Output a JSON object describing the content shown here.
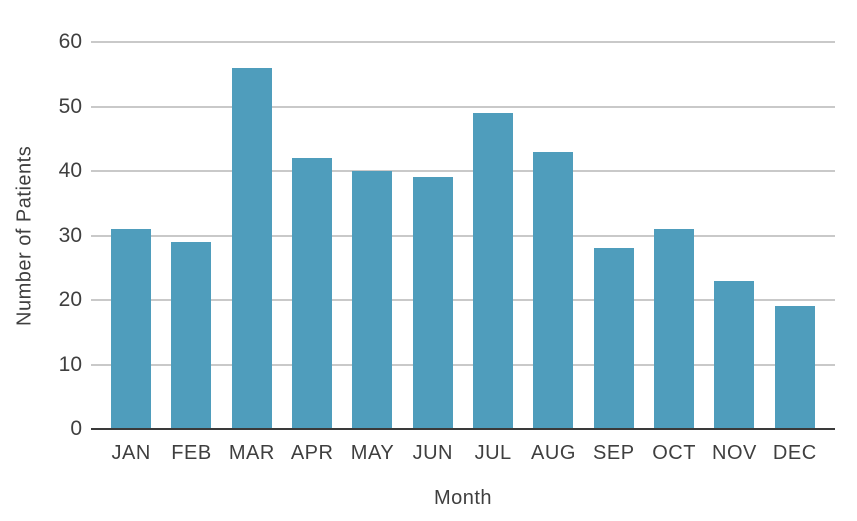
{
  "chart_data": {
    "type": "bar",
    "categories": [
      "JAN",
      "FEB",
      "MAR",
      "APR",
      "MAY",
      "JUN",
      "JUL",
      "AUG",
      "SEP",
      "OCT",
      "NOV",
      "DEC"
    ],
    "values": [
      31,
      29,
      56,
      42,
      40,
      39,
      49,
      43,
      28,
      31,
      23,
      19
    ],
    "xlabel": "Month",
    "ylabel": "Number of Patients",
    "ylim": [
      0,
      60
    ],
    "yticks": [
      0,
      10,
      20,
      30,
      40,
      50,
      60
    ],
    "grid": true,
    "legend": "none",
    "colors": {
      "bar": "#4f9dbc",
      "gridline": "#c9c9c9",
      "axis_line": "#3a3a3a",
      "text": "#3f3f3f",
      "background": "#ffffff"
    }
  }
}
